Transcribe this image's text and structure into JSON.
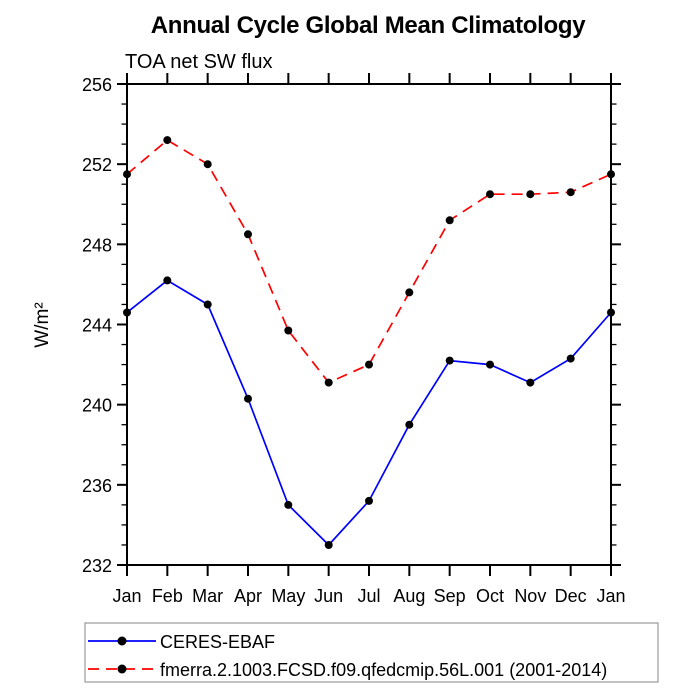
{
  "chart_data": {
    "type": "line",
    "title": "Annual Cycle Global Mean Climatology",
    "subtitle": "TOA net SW flux",
    "xlabel": "",
    "ylabel": "W/m²",
    "categories": [
      "Jan",
      "Feb",
      "Mar",
      "Apr",
      "May",
      "Jun",
      "Jul",
      "Aug",
      "Sep",
      "Oct",
      "Nov",
      "Dec",
      "Jan"
    ],
    "ylim": [
      232,
      256
    ],
    "ytick_major": [
      232,
      236,
      240,
      244,
      248,
      252,
      256
    ],
    "ytick_minor_step": 1,
    "grid": false,
    "legend_position": "bottom-left-box",
    "frame_color": "#000000",
    "marker_color": "#000000",
    "series": [
      {
        "name": "CERES-EBAF",
        "color": "#0000ff",
        "style": "solid",
        "marker": "black-dot",
        "values": [
          244.6,
          246.2,
          245.0,
          240.3,
          235.0,
          233.0,
          235.2,
          239.0,
          242.2,
          242.0,
          241.1,
          242.3,
          244.6
        ]
      },
      {
        "name": "fmerra.2.1003.FCSD.f09.qfedcmip.56L.001 (2001-2014)",
        "color": "#ff0000",
        "style": "dashed",
        "marker": "black-dot",
        "values": [
          251.5,
          253.2,
          252.0,
          248.5,
          243.7,
          241.1,
          242.0,
          245.6,
          249.2,
          250.5,
          250.5,
          250.6,
          251.5
        ]
      }
    ]
  }
}
